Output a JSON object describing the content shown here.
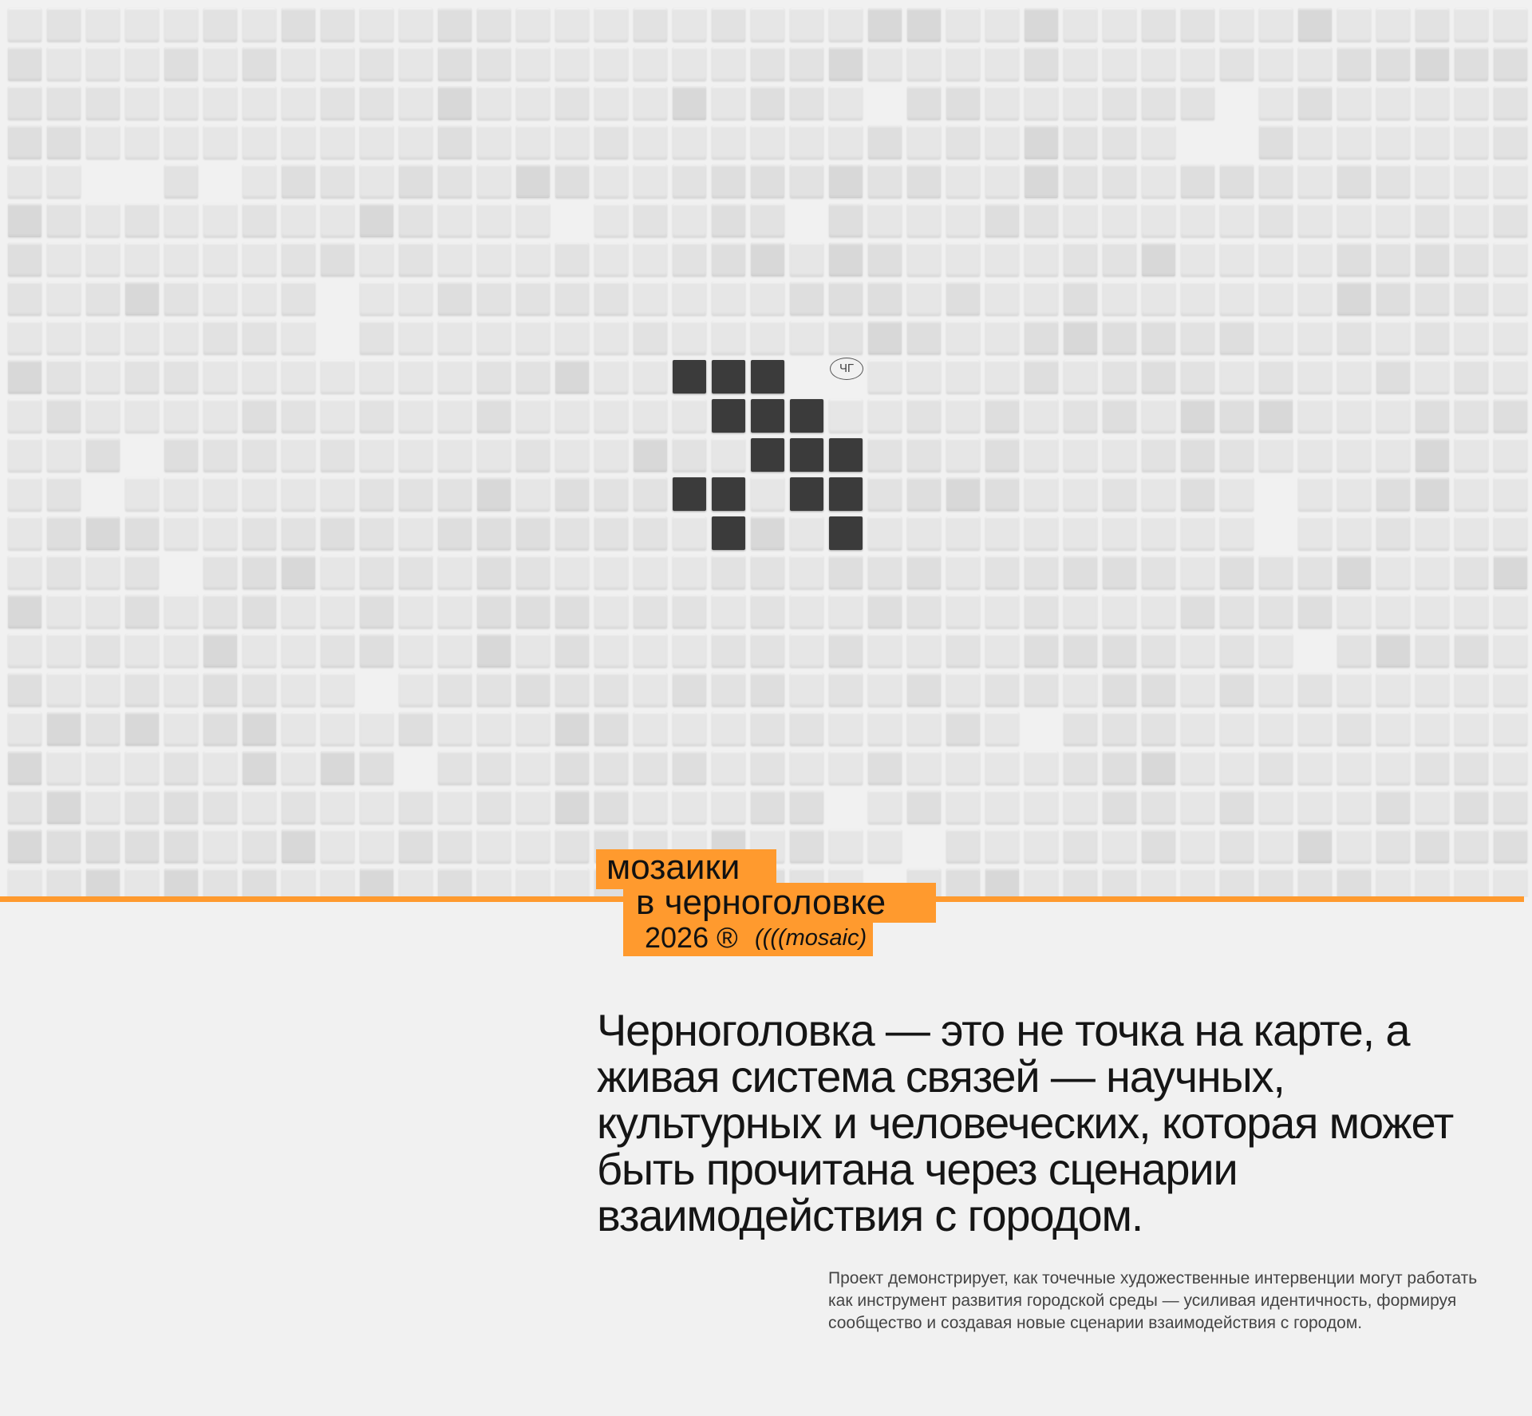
{
  "logo": {
    "line1": "мозаики",
    "line2": "в черноголовке",
    "year": "2026 ®",
    "tag": "((((mosaic)"
  },
  "badge": "ЧГ",
  "headline": "Черноголовка — это не точка на карте, а живая система связей — научных, культурных и человеческих, которая может быть прочитана через сценарии взаимодействия с городом.",
  "description": "Проект демонстрирует, как точечные художественные интервенции могут работать как инструмент развития городской среды — усиливая идентичность, формируя сообщество и создавая новые сценарии взаимодействия с городом.",
  "colors": {
    "accent": "#ff9a2e",
    "tile": "#e6e6e6",
    "dark_tile": "#3b3b3b",
    "background": "#f1f1f1"
  }
}
